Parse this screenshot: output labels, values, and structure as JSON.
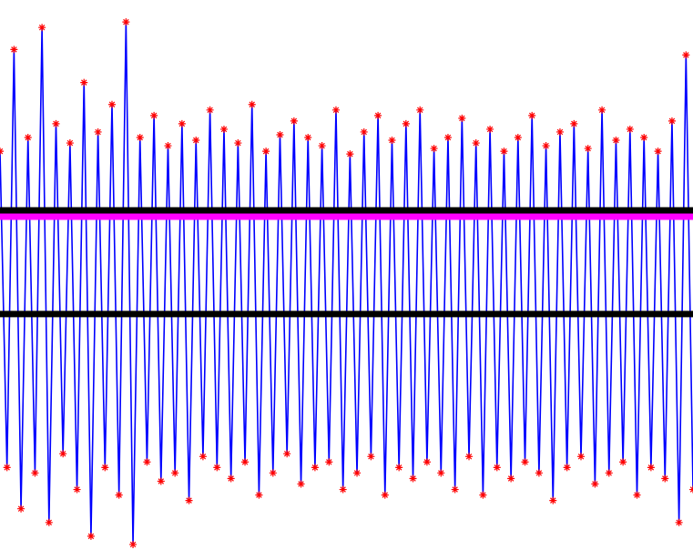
{
  "chart_data": {
    "type": "line",
    "ylim": [
      -1,
      1
    ],
    "series": [
      {
        "color": "#0000ff",
        "marker_color": "#ff0000",
        "values": [
          0.45,
          -0.7,
          0.82,
          -0.85,
          0.5,
          -0.72,
          0.9,
          -0.9,
          0.55,
          -0.65,
          0.48,
          -0.78,
          0.7,
          -0.95,
          0.52,
          -0.7,
          0.62,
          -0.8,
          0.92,
          -0.98,
          0.5,
          -0.68,
          0.58,
          -0.75,
          0.47,
          -0.72,
          0.55,
          -0.82,
          0.49,
          -0.66,
          0.6,
          -0.7,
          0.53,
          -0.74,
          0.48,
          -0.68,
          0.62,
          -0.8,
          0.45,
          -0.72,
          0.51,
          -0.65,
          0.56,
          -0.76,
          0.5,
          -0.7,
          0.47,
          -0.68,
          0.6,
          -0.78,
          0.44,
          -0.72,
          0.52,
          -0.66,
          0.58,
          -0.8,
          0.49,
          -0.7,
          0.55,
          -0.74,
          0.6,
          -0.68,
          0.46,
          -0.72,
          0.5,
          -0.78,
          0.57,
          -0.66,
          0.48,
          -0.8,
          0.53,
          -0.7,
          0.45,
          -0.74,
          0.5,
          -0.68,
          0.58,
          -0.72,
          0.47,
          -0.82,
          0.52,
          -0.7,
          0.55,
          -0.66,
          0.46,
          -0.76,
          0.6,
          -0.72,
          0.49,
          -0.68,
          0.53,
          -0.8,
          0.5,
          -0.7,
          0.45,
          -0.74,
          0.56,
          -0.9,
          0.8,
          -0.78
        ]
      }
    ],
    "hlines": [
      {
        "value": 0.235,
        "color": "#000000"
      },
      {
        "value": 0.212,
        "color": "#ff00ff"
      },
      {
        "value": -0.142,
        "color": "#000000"
      }
    ]
  }
}
